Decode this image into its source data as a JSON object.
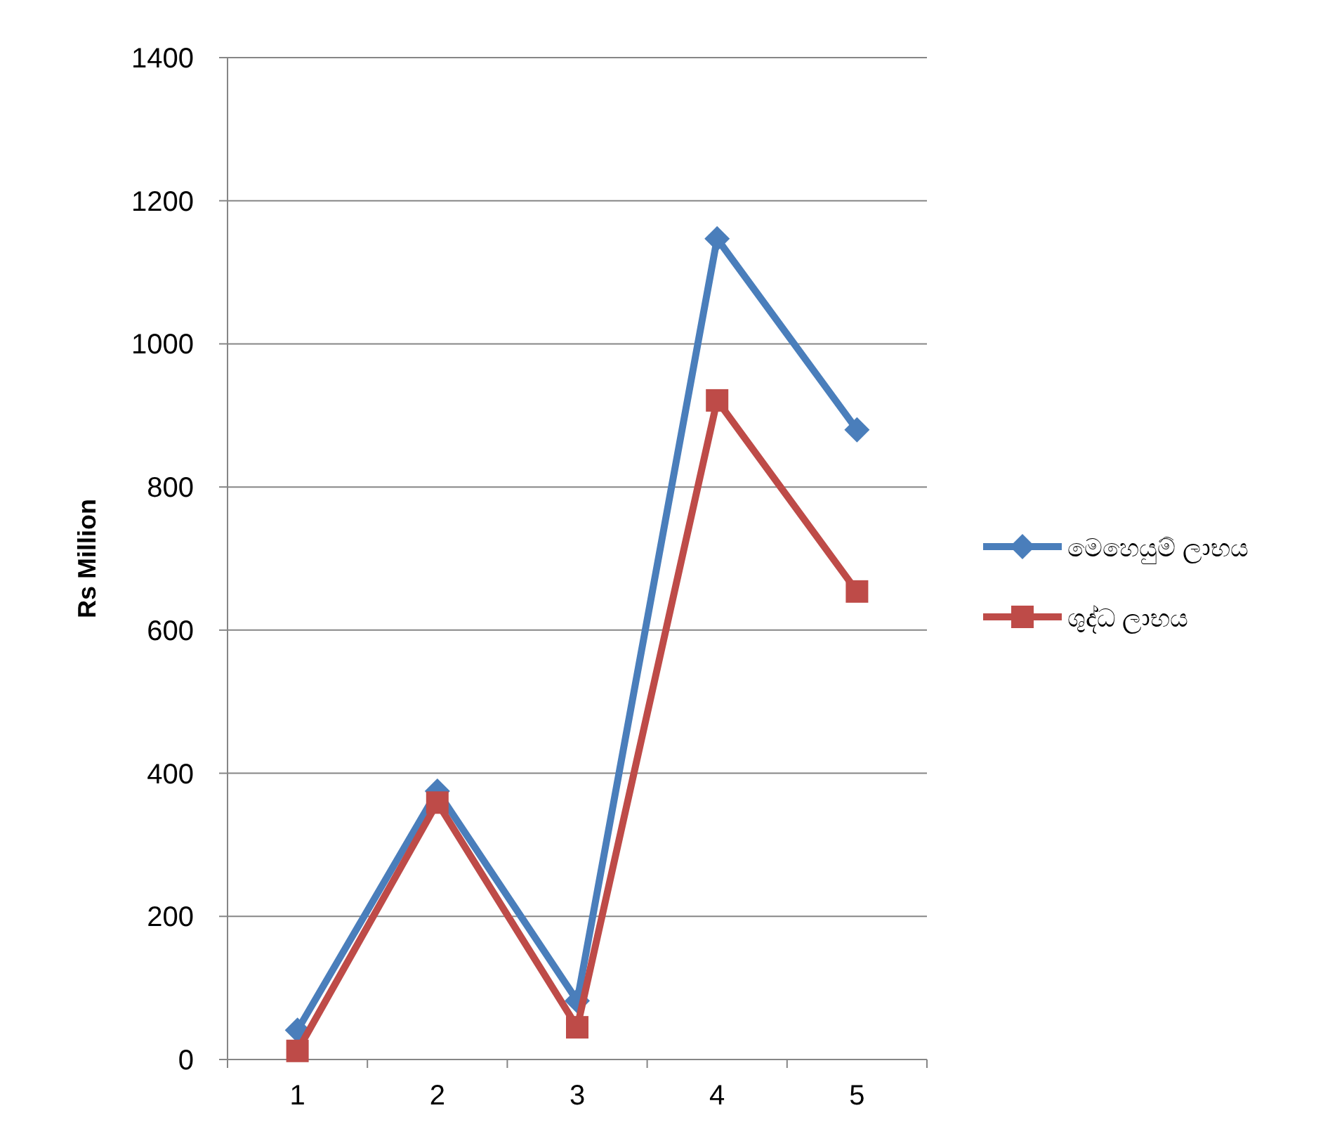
{
  "chart_data": {
    "type": "line",
    "ylabel": "Rs Million",
    "categories": [
      "1",
      "2",
      "3",
      "4",
      "5"
    ],
    "series": [
      {
        "name": "මෙහෙයුම් ලාභය",
        "color": "#4a7ebb",
        "marker": "diamond",
        "values": [
          41,
          375,
          82,
          1147,
          880
        ]
      },
      {
        "name": "ශුද්ධ ලාභය",
        "color": "#be4b48",
        "marker": "square",
        "values": [
          12,
          359,
          45,
          921,
          654
        ]
      }
    ],
    "ylim": [
      0,
      1400
    ],
    "yticks": [
      0,
      200,
      400,
      600,
      800,
      1000,
      1200,
      1400
    ],
    "grid": "y",
    "legend": "right"
  }
}
